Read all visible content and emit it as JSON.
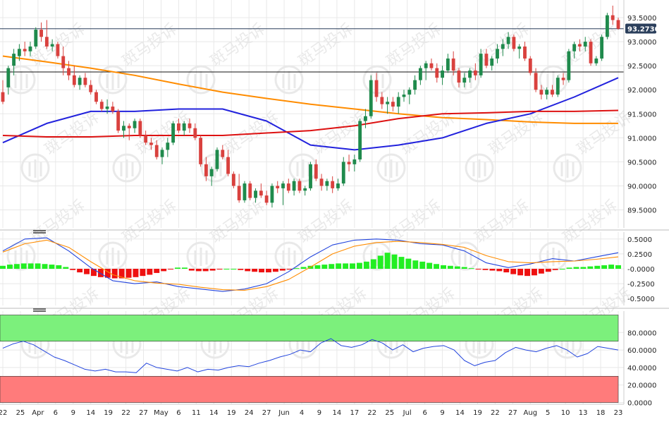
{
  "chart_data": [
    {
      "panel": "price",
      "type": "candlestick",
      "ylim": [
        89.2,
        93.75
      ],
      "y_ticks": [
        "93.5000",
        "93.0000",
        "92.5000",
        "92.0000",
        "91.5000",
        "91.0000",
        "90.5000",
        "90.0000",
        "89.5000"
      ],
      "y_tick_values": [
        93.5,
        93.0,
        92.5,
        92.0,
        91.5,
        91.0,
        90.5,
        90.0,
        89.5
      ],
      "current_price": {
        "label": "93.2730",
        "value": 93.273
      },
      "horizontal_lines": [
        93.27,
        92.37
      ],
      "candles": [
        [
          91.95,
          92.2,
          91.7,
          91.75
        ],
        [
          92.05,
          92.5,
          91.9,
          92.45
        ],
        [
          92.5,
          92.85,
          92.3,
          92.75
        ],
        [
          92.7,
          92.95,
          92.6,
          92.85
        ],
        [
          92.85,
          93.0,
          92.7,
          92.8
        ],
        [
          92.8,
          93.0,
          92.7,
          92.9
        ],
        [
          92.9,
          93.3,
          92.85,
          93.25
        ],
        [
          93.25,
          93.4,
          93.0,
          93.1
        ],
        [
          93.1,
          93.45,
          92.85,
          92.9
        ],
        [
          92.9,
          93.05,
          92.8,
          92.95
        ],
        [
          92.95,
          93.0,
          92.65,
          92.7
        ],
        [
          92.7,
          92.9,
          92.3,
          92.45
        ],
        [
          92.45,
          92.6,
          92.2,
          92.3
        ],
        [
          92.3,
          92.5,
          92.05,
          92.1
        ],
        [
          92.1,
          92.3,
          92.0,
          92.25
        ],
        [
          92.25,
          92.35,
          92.05,
          92.1
        ],
        [
          92.1,
          92.2,
          91.9,
          91.95
        ],
        [
          91.95,
          92.0,
          91.7,
          91.75
        ],
        [
          91.75,
          91.8,
          91.55,
          91.6
        ],
        [
          91.6,
          91.8,
          91.5,
          91.65
        ],
        [
          91.65,
          91.75,
          91.5,
          91.55
        ],
        [
          91.55,
          91.6,
          91.1,
          91.15
        ],
        [
          91.15,
          91.35,
          91.0,
          91.25
        ],
        [
          91.25,
          91.3,
          90.95,
          91.2
        ],
        [
          91.2,
          91.4,
          91.1,
          91.35
        ],
        [
          91.35,
          91.4,
          91.0,
          91.05
        ],
        [
          91.05,
          91.15,
          90.85,
          90.9
        ],
        [
          90.9,
          91.0,
          90.75,
          90.85
        ],
        [
          90.85,
          90.95,
          90.55,
          90.6
        ],
        [
          90.6,
          90.8,
          90.45,
          90.75
        ],
        [
          90.75,
          91.0,
          90.6,
          90.9
        ],
        [
          90.9,
          91.35,
          90.85,
          91.3
        ],
        [
          91.3,
          91.4,
          91.1,
          91.15
        ],
        [
          91.15,
          91.35,
          91.05,
          91.3
        ],
        [
          91.3,
          91.4,
          91.1,
          91.2
        ],
        [
          91.2,
          91.3,
          90.95,
          91.0
        ],
        [
          91.0,
          91.05,
          90.4,
          90.45
        ],
        [
          90.45,
          90.6,
          90.1,
          90.2
        ],
        [
          90.2,
          90.4,
          90.0,
          90.35
        ],
        [
          90.35,
          90.8,
          90.3,
          90.75
        ],
        [
          90.75,
          90.85,
          90.55,
          90.6
        ],
        [
          90.6,
          90.75,
          90.2,
          90.25
        ],
        [
          90.25,
          90.3,
          89.95,
          90.0
        ],
        [
          90.0,
          90.25,
          89.65,
          89.7
        ],
        [
          89.7,
          90.1,
          89.65,
          90.05
        ],
        [
          90.05,
          90.1,
          89.7,
          89.75
        ],
        [
          89.75,
          89.95,
          89.65,
          89.9
        ],
        [
          89.9,
          90.05,
          89.75,
          89.8
        ],
        [
          89.8,
          89.9,
          89.6,
          89.65
        ],
        [
          89.65,
          90.05,
          89.55,
          90.0
        ],
        [
          90.0,
          90.1,
          89.85,
          89.95
        ],
        [
          89.95,
          90.1,
          89.6,
          90.05
        ],
        [
          90.05,
          90.15,
          89.85,
          89.9
        ],
        [
          89.9,
          90.15,
          89.8,
          90.1
        ],
        [
          90.1,
          90.15,
          89.85,
          89.9
        ],
        [
          89.9,
          90.0,
          89.8,
          89.95
        ],
        [
          89.95,
          90.5,
          89.9,
          90.45
        ],
        [
          90.45,
          90.55,
          90.1,
          90.15
        ],
        [
          90.15,
          90.25,
          89.9,
          90.0
        ],
        [
          90.0,
          90.15,
          89.9,
          90.1
        ],
        [
          90.1,
          90.2,
          89.85,
          89.95
        ],
        [
          89.95,
          90.15,
          89.9,
          90.05
        ],
        [
          90.05,
          90.6,
          90.0,
          90.5
        ],
        [
          90.5,
          90.65,
          90.3,
          90.45
        ],
        [
          90.45,
          90.65,
          90.3,
          90.55
        ],
        [
          90.55,
          91.4,
          90.5,
          91.35
        ],
        [
          91.35,
          91.6,
          91.2,
          91.45
        ],
        [
          91.45,
          92.3,
          91.4,
          92.2
        ],
        [
          92.2,
          92.35,
          91.75,
          91.85
        ],
        [
          91.85,
          91.95,
          91.6,
          91.7
        ],
        [
          91.7,
          91.85,
          91.5,
          91.75
        ],
        [
          91.75,
          91.85,
          91.55,
          91.65
        ],
        [
          91.65,
          91.95,
          91.5,
          91.85
        ],
        [
          91.85,
          92.0,
          91.75,
          91.9
        ],
        [
          91.9,
          92.05,
          91.7,
          92.0
        ],
        [
          92.0,
          92.3,
          91.9,
          92.2
        ],
        [
          92.2,
          92.5,
          92.1,
          92.45
        ],
        [
          92.45,
          92.6,
          92.2,
          92.55
        ],
        [
          92.55,
          92.65,
          92.4,
          92.45
        ],
        [
          92.45,
          92.55,
          92.15,
          92.25
        ],
        [
          92.25,
          92.5,
          92.1,
          92.4
        ],
        [
          92.4,
          92.75,
          92.35,
          92.65
        ],
        [
          92.65,
          92.8,
          92.3,
          92.4
        ],
        [
          92.4,
          92.45,
          92.05,
          92.15
        ],
        [
          92.15,
          92.35,
          92.05,
          92.25
        ],
        [
          92.25,
          92.45,
          92.15,
          92.4
        ],
        [
          92.4,
          92.55,
          92.2,
          92.3
        ],
        [
          92.3,
          92.85,
          92.25,
          92.75
        ],
        [
          92.75,
          92.85,
          92.45,
          92.5
        ],
        [
          92.5,
          92.7,
          92.4,
          92.65
        ],
        [
          92.65,
          92.95,
          92.55,
          92.85
        ],
        [
          92.85,
          93.05,
          92.7,
          92.95
        ],
        [
          92.95,
          93.2,
          92.85,
          93.1
        ],
        [
          93.1,
          93.15,
          92.8,
          92.85
        ],
        [
          92.85,
          92.95,
          92.65,
          92.9
        ],
        [
          92.9,
          93.0,
          92.6,
          92.65
        ],
        [
          92.65,
          92.7,
          92.3,
          92.35
        ],
        [
          92.35,
          92.45,
          91.95,
          92.0
        ],
        [
          92.0,
          92.1,
          91.8,
          91.9
        ],
        [
          91.9,
          92.05,
          91.8,
          92.0
        ],
        [
          92.0,
          92.1,
          91.85,
          91.9
        ],
        [
          91.9,
          92.3,
          91.85,
          92.25
        ],
        [
          92.25,
          92.35,
          92.1,
          92.2
        ],
        [
          92.2,
          92.85,
          92.15,
          92.8
        ],
        [
          92.8,
          93.0,
          92.65,
          92.95
        ],
        [
          92.95,
          93.05,
          92.8,
          92.9
        ],
        [
          92.9,
          93.1,
          92.8,
          93.0
        ],
        [
          93.0,
          93.05,
          92.5,
          92.55
        ],
        [
          92.55,
          92.7,
          92.5,
          92.65
        ],
        [
          92.65,
          93.15,
          92.6,
          93.1
        ],
        [
          93.1,
          93.6,
          93.05,
          93.55
        ],
        [
          93.55,
          93.75,
          93.35,
          93.45
        ],
        [
          93.45,
          93.5,
          93.25,
          93.27
        ]
      ],
      "moving_averages": [
        {
          "color": "#ff8c00",
          "values": [
            92.7,
            92.58,
            92.45,
            92.3,
            92.12,
            91.95,
            91.82,
            91.7,
            91.6,
            91.5,
            91.42,
            91.38,
            91.33,
            91.3,
            91.3
          ]
        },
        {
          "color": "#2222dd",
          "values": [
            90.9,
            91.3,
            91.55,
            91.55,
            91.6,
            91.6,
            91.35,
            90.85,
            90.75,
            90.85,
            91.0,
            91.3,
            91.5,
            91.85,
            92.25
          ]
        },
        {
          "color": "#dd1111",
          "values": [
            91.05,
            91.02,
            91.02,
            91.05,
            91.05,
            91.05,
            91.1,
            91.15,
            91.25,
            91.4,
            91.5,
            91.52,
            91.55,
            91.55,
            91.57
          ]
        }
      ]
    },
    {
      "panel": "macd",
      "type": "line",
      "ylim": [
        -0.58,
        0.58
      ],
      "y_ticks": [
        "0.5000",
        "0.2500",
        "-0.0000",
        "-0.2500",
        "-0.5000"
      ],
      "y_tick_values": [
        0.5,
        0.25,
        0,
        -0.25,
        -0.5
      ],
      "series": [
        {
          "color": "#2244dd",
          "values": [
            0.3,
            0.5,
            0.52,
            0.3,
            0.02,
            -0.2,
            -0.25,
            -0.22,
            -0.3,
            -0.34,
            -0.38,
            -0.34,
            -0.25,
            -0.05,
            0.2,
            0.4,
            0.48,
            0.5,
            0.48,
            0.42,
            0.4,
            0.3,
            0.1,
            0.02,
            0.08,
            0.17,
            0.13,
            0.2,
            0.27
          ]
        },
        {
          "color": "#ff8c00",
          "values": [
            0.28,
            0.42,
            0.48,
            0.36,
            0.12,
            -0.1,
            -0.2,
            -0.24,
            -0.26,
            -0.31,
            -0.35,
            -0.36,
            -0.3,
            -0.18,
            0.03,
            0.25,
            0.38,
            0.44,
            0.46,
            0.44,
            0.41,
            0.36,
            0.22,
            0.12,
            0.1,
            0.12,
            0.13,
            0.16,
            0.2
          ]
        }
      ],
      "histogram": [
        0.05,
        0.07,
        0.08,
        0.09,
        0.09,
        0.09,
        0.08,
        0.07,
        0.06,
        0.03,
        -0.02,
        -0.06,
        -0.09,
        -0.12,
        -0.14,
        -0.15,
        -0.16,
        -0.16,
        -0.15,
        -0.14,
        -0.12,
        -0.1,
        -0.07,
        -0.04,
        -0.01,
        0.02,
        0.02,
        -0.03,
        -0.04,
        -0.04,
        -0.03,
        -0.01,
        0.0,
        0.0,
        -0.02,
        -0.04,
        -0.05,
        -0.06,
        -0.06,
        -0.05,
        -0.03,
        -0.01,
        0.01,
        0.03,
        0.05,
        0.06,
        0.07,
        0.08,
        0.09,
        0.09,
        0.09,
        0.1,
        0.12,
        0.16,
        0.22,
        0.27,
        0.24,
        0.2,
        0.17,
        0.14,
        0.12,
        0.1,
        0.08,
        0.06,
        0.05,
        0.04,
        0.03,
        0.01,
        -0.01,
        -0.02,
        -0.03,
        -0.04,
        -0.06,
        -0.09,
        -0.11,
        -0.12,
        -0.11,
        -0.08,
        -0.05,
        -0.02,
        0.0,
        0.02,
        0.03,
        0.03,
        0.04,
        0.05,
        0.06,
        0.07,
        0.06
      ]
    },
    {
      "panel": "rsi",
      "type": "line",
      "ylim": [
        -2,
        102
      ],
      "y_ticks": [
        "80.0000",
        "60.0000",
        "40.0000",
        "20.0000",
        "0.0000"
      ],
      "y_tick_values": [
        80,
        60,
        40,
        20,
        0
      ],
      "bands": [
        {
          "from": 70,
          "to": 100,
          "color": "#7cf07c"
        },
        {
          "from": 0,
          "to": 30,
          "color": "#ff7b7b"
        }
      ],
      "series": [
        {
          "color": "#2244dd",
          "values": [
            62,
            67,
            70,
            66,
            59,
            52,
            48,
            43,
            38,
            36,
            38,
            35,
            35,
            34,
            45,
            40,
            38,
            36,
            40,
            35,
            38,
            37,
            40,
            42,
            41,
            45,
            48,
            52,
            55,
            60,
            58,
            68,
            73,
            65,
            63,
            66,
            72,
            68,
            60,
            66,
            58,
            62,
            64,
            65,
            60,
            48,
            42,
            46,
            48,
            57,
            63,
            60,
            58,
            62,
            65,
            60,
            52,
            56,
            64,
            62,
            60
          ]
        }
      ]
    }
  ],
  "x_axis": {
    "tick_labels": [
      "22",
      "25",
      "Apr",
      "6",
      "9",
      "14",
      "19",
      "22",
      "27",
      "May",
      "6",
      "11",
      "14",
      "19",
      "24",
      "27",
      "Jun",
      "4",
      "9",
      "14",
      "17",
      "22",
      "25",
      "Jul",
      "6",
      "9",
      "14",
      "19",
      "22",
      "27",
      "Aug",
      "5",
      "10",
      "13",
      "18",
      "23"
    ]
  },
  "colors": {
    "up": "#1f8a4c",
    "down": "#d9413e",
    "macd_hist_up": "#22ee22",
    "macd_hist_down": "#ee1111",
    "grid": "#e8e8e8",
    "current_price_bg": "#2b3f5c"
  },
  "watermark_text": "斑马投诉"
}
